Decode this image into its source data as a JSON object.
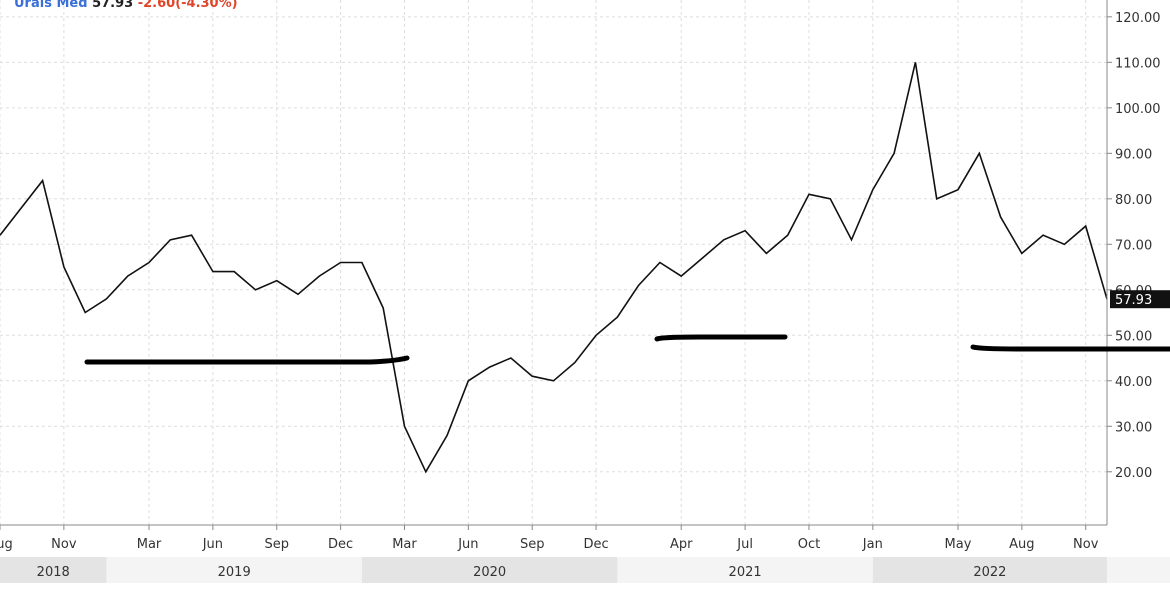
{
  "chart_data": {
    "type": "line",
    "title": {
      "name": "Urals Med",
      "last": "57.93",
      "change": "-2.60(-4.30%)"
    },
    "x": [
      "2018-08",
      "2018-09",
      "2018-10",
      "2018-11",
      "2018-12",
      "2019-01",
      "2019-02",
      "2019-03",
      "2019-04",
      "2019-05",
      "2019-06",
      "2019-07",
      "2019-08",
      "2019-09",
      "2019-10",
      "2019-11",
      "2019-12",
      "2020-01",
      "2020-02",
      "2020-03",
      "2020-04",
      "2020-05",
      "2020-06",
      "2020-07",
      "2020-08",
      "2020-09",
      "2020-10",
      "2020-11",
      "2020-12",
      "2021-01",
      "2021-02",
      "2021-03",
      "2021-04",
      "2021-05",
      "2021-06",
      "2021-07",
      "2021-08",
      "2021-09",
      "2021-10",
      "2021-11",
      "2021-12",
      "2022-01",
      "2022-02",
      "2022-03",
      "2022-04",
      "2022-05",
      "2022-06",
      "2022-07",
      "2022-08",
      "2022-09",
      "2022-10",
      "2022-11",
      "2022-12"
    ],
    "series": [
      {
        "name": "Urals Med",
        "color": "#111111",
        "values": [
          72,
          78,
          84,
          65,
          55,
          58,
          63,
          66,
          71,
          72,
          64,
          64,
          60,
          62,
          59,
          63,
          66,
          66,
          56,
          30,
          20,
          28,
          40,
          43,
          45,
          41,
          40,
          44,
          50,
          54,
          61,
          66,
          63,
          67,
          71,
          73,
          68,
          72,
          81,
          80,
          71,
          82,
          90,
          110,
          80,
          82,
          90,
          76,
          68,
          72,
          70,
          74,
          57.93
        ],
        "value_labels": [
          null,
          null,
          null,
          null,
          null,
          null,
          null,
          null,
          null,
          null,
          null,
          null,
          null,
          null,
          null,
          null,
          null,
          null,
          null,
          null,
          null,
          null,
          null,
          null,
          null,
          null,
          null,
          null,
          null,
          null,
          null,
          null,
          null,
          null,
          null,
          null,
          null,
          null,
          null,
          null,
          null,
          null,
          null,
          null,
          null,
          null,
          null,
          null,
          null,
          null,
          null,
          null,
          "57.93"
        ]
      }
    ],
    "xlim": [
      "2018-08",
      "2022-12"
    ],
    "xticks": [
      {
        "value": "2018-08",
        "label": "Aug"
      },
      {
        "value": "2018-11",
        "label": "Nov"
      },
      {
        "value": "2019-03",
        "label": "Mar"
      },
      {
        "value": "2019-06",
        "label": "Jun"
      },
      {
        "value": "2019-09",
        "label": "Sep"
      },
      {
        "value": "2019-12",
        "label": "Dec"
      },
      {
        "value": "2020-03",
        "label": "Mar"
      },
      {
        "value": "2020-06",
        "label": "Jun"
      },
      {
        "value": "2020-09",
        "label": "Sep"
      },
      {
        "value": "2020-12",
        "label": "Dec"
      },
      {
        "value": "2021-04",
        "label": "Apr"
      },
      {
        "value": "2021-07",
        "label": "Jul"
      },
      {
        "value": "2021-10",
        "label": "Oct"
      },
      {
        "value": "2022-01",
        "label": "Jan"
      },
      {
        "value": "2022-05",
        "label": "May"
      },
      {
        "value": "2022-08",
        "label": "Aug"
      },
      {
        "value": "2022-11",
        "label": "Nov"
      }
    ],
    "years": [
      "2018",
      "2019",
      "2020",
      "2021",
      "2022"
    ],
    "ylim": [
      8.3,
      123.7
    ],
    "yticks": [
      {
        "value": 20,
        "label": "20.00"
      },
      {
        "value": 30,
        "label": "30.00"
      },
      {
        "value": 40,
        "label": "40.00"
      },
      {
        "value": 50,
        "label": "50.00"
      },
      {
        "value": 60,
        "label": "60.00"
      },
      {
        "value": 70,
        "label": "70.00"
      },
      {
        "value": 80,
        "label": "80.00"
      },
      {
        "value": 90,
        "label": "90.00"
      },
      {
        "value": 100,
        "label": "100.00"
      },
      {
        "value": 110,
        "label": "110.00"
      },
      {
        "value": 120,
        "label": "120.00"
      }
    ],
    "grid": true
  }
}
